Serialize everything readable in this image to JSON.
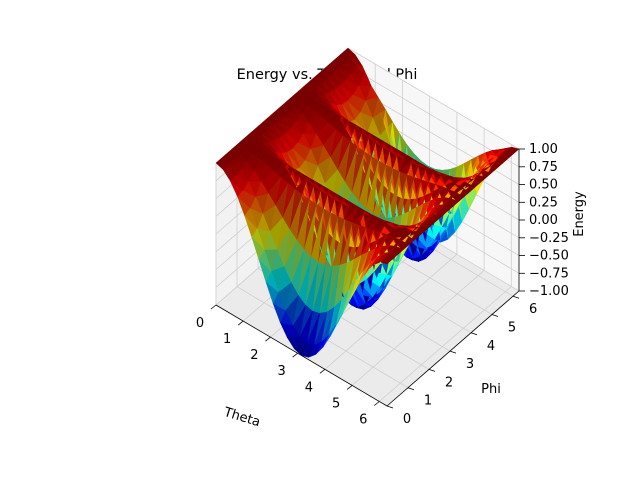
{
  "chart_data": {
    "type": "surface3d",
    "title": "Energy vs. Theta and Phi",
    "xlabel": "Theta",
    "ylabel": "Phi",
    "zlabel": "Energy",
    "x_ticks": [
      "0",
      "1",
      "2",
      "3",
      "4",
      "5",
      "6"
    ],
    "y_ticks": [
      "0",
      "1",
      "2",
      "3",
      "4",
      "5",
      "6"
    ],
    "z_ticks": [
      "−1.00",
      "−0.75",
      "−0.50",
      "−0.25",
      "0.00",
      "0.25",
      "0.50",
      "0.75",
      "1.00"
    ],
    "xlim": [
      0,
      6.283
    ],
    "ylim": [
      0,
      6.283
    ],
    "zlim": [
      -1,
      1
    ],
    "colormap": "jet",
    "grid": true,
    "x": [
      0,
      0.2618,
      0.5236,
      0.7854,
      1.0472,
      1.309,
      1.5708,
      1.8326,
      2.0944,
      2.3562,
      2.618,
      2.8798,
      3.1416,
      3.4034,
      3.6652,
      3.927,
      4.1888,
      4.4506,
      4.7124,
      4.9742,
      5.236,
      5.4978,
      5.7596,
      6.0214,
      6.2832
    ],
    "y": [
      0,
      0.2618,
      0.5236,
      0.7854,
      1.0472,
      1.309,
      1.5708,
      1.8326,
      2.0944,
      2.3562,
      2.618,
      2.8798,
      3.1416,
      3.4034,
      3.6652,
      3.927,
      4.1888,
      4.4506,
      4.7124,
      4.9742,
      5.236,
      5.4978,
      5.7596,
      6.0214,
      6.2832
    ],
    "z": [
      [
        1.0,
        0.966,
        0.866,
        0.7071,
        0.5,
        0.2588,
        0.0,
        -0.2588,
        -0.5,
        -0.7071,
        -0.866,
        -0.966,
        -1.0,
        -0.966,
        -0.866,
        -0.7071,
        -0.5,
        -0.2588,
        0.0,
        0.2588,
        0.5,
        0.7071,
        0.866,
        0.966,
        1.0
      ],
      [
        1.0,
        0.9683,
        0.8749,
        0.7265,
        0.5341,
        0.3108,
        0.0681,
        -0.1774,
        -0.4085,
        -0.6082,
        -0.7622,
        -0.8589,
        -0.8918,
        -0.8589,
        -0.7622,
        -0.6082,
        -0.4085,
        -0.1774,
        0.0681,
        0.3108,
        0.5341,
        0.7265,
        0.8749,
        0.9683,
        1.0
      ],
      [
        1.0,
        0.9751,
        0.9007,
        0.7827,
        0.6294,
        0.4513,
        0.2607,
        0.0634,
        -0.1214,
        -0.2811,
        -0.4044,
        -0.4818,
        -0.5081,
        -0.4818,
        -0.4044,
        -0.2811,
        -0.1214,
        0.0634,
        0.2607,
        0.4513,
        0.6294,
        0.7827,
        0.9007,
        0.9751,
        1.0
      ],
      [
        1.0,
        0.9849,
        0.9405,
        0.8685,
        0.7752,
        0.6694,
        0.5598,
        0.4452,
        0.3373,
        0.2451,
        0.1744,
        0.1303,
        0.1153,
        0.1303,
        0.1744,
        0.2451,
        0.3373,
        0.4452,
        0.5598,
        0.6694,
        0.7752,
        0.8685,
        0.9405,
        0.9849,
        1.0
      ],
      [
        1.0,
        0.9958,
        0.9835,
        0.9635,
        0.9386,
        0.9116,
        0.8848,
        0.8596,
        0.8376,
        0.8203,
        0.8078,
        0.8003,
        0.7978,
        0.8003,
        0.8078,
        0.8203,
        0.8376,
        0.8596,
        0.8848,
        0.9116,
        0.9386,
        0.9635,
        0.9835,
        0.9958,
        1.0
      ],
      [
        1.0,
        1.0,
        1.0,
        1.0,
        1.0,
        1.0,
        1.0,
        1.0,
        1.0,
        1.0,
        1.0,
        1.0,
        1.0,
        1.0,
        1.0,
        1.0,
        1.0,
        1.0,
        1.0,
        1.0,
        1.0,
        1.0,
        1.0,
        1.0,
        1.0
      ],
      [
        1.0,
        0.9958,
        0.9835,
        0.9635,
        0.9386,
        0.9116,
        0.8848,
        0.8596,
        0.8376,
        0.8203,
        0.8078,
        0.8003,
        0.7978,
        0.8003,
        0.8078,
        0.8203,
        0.8376,
        0.8596,
        0.8848,
        0.9116,
        0.9386,
        0.9635,
        0.9835,
        0.9958,
        1.0
      ],
      [
        1.0,
        0.9849,
        0.9405,
        0.8685,
        0.7752,
        0.6694,
        0.5598,
        0.4452,
        0.3373,
        0.2451,
        0.1744,
        0.1303,
        0.1153,
        0.1303,
        0.1744,
        0.2451,
        0.3373,
        0.4452,
        0.5598,
        0.6694,
        0.7752,
        0.8685,
        0.9405,
        0.9849,
        1.0
      ],
      [
        1.0,
        0.9751,
        0.9007,
        0.7827,
        0.6294,
        0.4513,
        0.2607,
        0.0634,
        -0.1214,
        -0.2811,
        -0.4044,
        -0.4818,
        -0.5081,
        -0.4818,
        -0.4044,
        -0.2811,
        -0.1214,
        0.0634,
        0.2607,
        0.4513,
        0.6294,
        0.7827,
        0.9007,
        0.9751,
        1.0
      ],
      [
        1.0,
        0.9683,
        0.8749,
        0.7265,
        0.5341,
        0.3108,
        0.0681,
        -0.1774,
        -0.4085,
        -0.6082,
        -0.7622,
        -0.8589,
        -0.8918,
        -0.8589,
        -0.7622,
        -0.6082,
        -0.4085,
        -0.1774,
        0.0681,
        0.3108,
        0.5341,
        0.7265,
        0.8749,
        0.9683,
        1.0
      ],
      [
        1.0,
        0.966,
        0.866,
        0.7071,
        0.5,
        0.2588,
        0.0,
        -0.2588,
        -0.5,
        -0.7071,
        -0.866,
        -0.966,
        -1.0,
        -0.966,
        -0.866,
        -0.7071,
        -0.5,
        -0.2588,
        0.0,
        0.2588,
        0.5,
        0.7071,
        0.866,
        0.966,
        1.0
      ],
      [
        1.0,
        0.9683,
        0.8749,
        0.7265,
        0.5341,
        0.3108,
        0.0681,
        -0.1774,
        -0.4085,
        -0.6082,
        -0.7622,
        -0.8589,
        -0.8918,
        -0.8589,
        -0.7622,
        -0.6082,
        -0.4085,
        -0.1774,
        0.0681,
        0.3108,
        0.5341,
        0.7265,
        0.8749,
        0.9683,
        1.0
      ],
      [
        1.0,
        0.9751,
        0.9007,
        0.7827,
        0.6294,
        0.4513,
        0.2607,
        0.0634,
        -0.1214,
        -0.2811,
        -0.4044,
        -0.4818,
        -0.5081,
        -0.4818,
        -0.4044,
        -0.2811,
        -0.1214,
        0.0634,
        0.2607,
        0.4513,
        0.6294,
        0.7827,
        0.9007,
        0.9751,
        1.0
      ],
      [
        1.0,
        0.9849,
        0.9405,
        0.8685,
        0.7752,
        0.6694,
        0.5598,
        0.4452,
        0.3373,
        0.2451,
        0.1744,
        0.1303,
        0.1153,
        0.1303,
        0.1744,
        0.2451,
        0.3373,
        0.4452,
        0.5598,
        0.6694,
        0.7752,
        0.8685,
        0.9405,
        0.9849,
        1.0
      ],
      [
        1.0,
        0.9958,
        0.9835,
        0.9635,
        0.9386,
        0.9116,
        0.8848,
        0.8596,
        0.8376,
        0.8203,
        0.8078,
        0.8003,
        0.7978,
        0.8003,
        0.8078,
        0.8203,
        0.8376,
        0.8596,
        0.8848,
        0.9116,
        0.9386,
        0.9635,
        0.9835,
        0.9958,
        1.0
      ],
      [
        1.0,
        1.0,
        1.0,
        1.0,
        1.0,
        1.0,
        1.0,
        1.0,
        1.0,
        1.0,
        1.0,
        1.0,
        1.0,
        1.0,
        1.0,
        1.0,
        1.0,
        1.0,
        1.0,
        1.0,
        1.0,
        1.0,
        1.0,
        1.0,
        1.0
      ],
      [
        1.0,
        0.9958,
        0.9835,
        0.9635,
        0.9386,
        0.9116,
        0.8848,
        0.8596,
        0.8376,
        0.8203,
        0.8078,
        0.8003,
        0.7978,
        0.8003,
        0.8078,
        0.8203,
        0.8376,
        0.8596,
        0.8848,
        0.9116,
        0.9386,
        0.9635,
        0.9835,
        0.9958,
        1.0
      ],
      [
        1.0,
        0.9849,
        0.9405,
        0.8685,
        0.7752,
        0.6694,
        0.5598,
        0.4452,
        0.3373,
        0.2451,
        0.1744,
        0.1303,
        0.1153,
        0.1303,
        0.1744,
        0.2451,
        0.3373,
        0.4452,
        0.5598,
        0.6694,
        0.7752,
        0.8685,
        0.9405,
        0.9849,
        1.0
      ],
      [
        1.0,
        0.9751,
        0.9007,
        0.7827,
        0.6294,
        0.4513,
        0.2607,
        0.0634,
        -0.1214,
        -0.2811,
        -0.4044,
        -0.4818,
        -0.5081,
        -0.4818,
        -0.4044,
        -0.2811,
        -0.1214,
        0.0634,
        0.2607,
        0.4513,
        0.6294,
        0.7827,
        0.9007,
        0.9751,
        1.0
      ],
      [
        1.0,
        0.9683,
        0.8749,
        0.7265,
        0.5341,
        0.3108,
        0.0681,
        -0.1774,
        -0.4085,
        -0.6082,
        -0.7622,
        -0.8589,
        -0.8918,
        -0.8589,
        -0.7622,
        -0.6082,
        -0.4085,
        -0.1774,
        0.0681,
        0.3108,
        0.5341,
        0.7265,
        0.8749,
        0.9683,
        1.0
      ],
      [
        1.0,
        0.966,
        0.866,
        0.7071,
        0.5,
        0.2588,
        0.0,
        -0.2588,
        -0.5,
        -0.7071,
        -0.866,
        -0.966,
        -1.0,
        -0.966,
        -0.866,
        -0.7071,
        -0.5,
        -0.2588,
        0.0,
        0.2588,
        0.5,
        0.7071,
        0.866,
        0.966,
        1.0
      ],
      [
        1.0,
        0.9683,
        0.8749,
        0.7265,
        0.5341,
        0.3108,
        0.0681,
        -0.1774,
        -0.4085,
        -0.6082,
        -0.7622,
        -0.8589,
        -0.8918,
        -0.8589,
        -0.7622,
        -0.6082,
        -0.4085,
        -0.1774,
        0.0681,
        0.3108,
        0.5341,
        0.7265,
        0.8749,
        0.9683,
        1.0
      ],
      [
        1.0,
        0.9751,
        0.9007,
        0.7827,
        0.6294,
        0.4513,
        0.2607,
        0.0634,
        -0.1214,
        -0.2811,
        -0.4044,
        -0.4818,
        -0.5081,
        -0.4818,
        -0.4044,
        -0.2811,
        -0.1214,
        0.0634,
        0.2607,
        0.4513,
        0.6294,
        0.7827,
        0.9007,
        0.9751,
        1.0
      ],
      [
        1.0,
        0.9849,
        0.9405,
        0.8685,
        0.7752,
        0.6694,
        0.5598,
        0.4452,
        0.3373,
        0.2451,
        0.1744,
        0.1303,
        0.1153,
        0.1303,
        0.1744,
        0.2451,
        0.3373,
        0.4452,
        0.5598,
        0.6694,
        0.7752,
        0.8685,
        0.9405,
        0.9849,
        1.0
      ],
      [
        1.0,
        0.966,
        0.866,
        0.7071,
        0.5,
        0.2588,
        0.0,
        -0.2588,
        -0.5,
        -0.7071,
        -0.866,
        -0.966,
        -1.0,
        -0.966,
        -0.866,
        -0.7071,
        -0.5,
        -0.2588,
        0.0,
        0.2588,
        0.5,
        0.7071,
        0.866,
        0.966,
        1.0
      ]
    ]
  }
}
